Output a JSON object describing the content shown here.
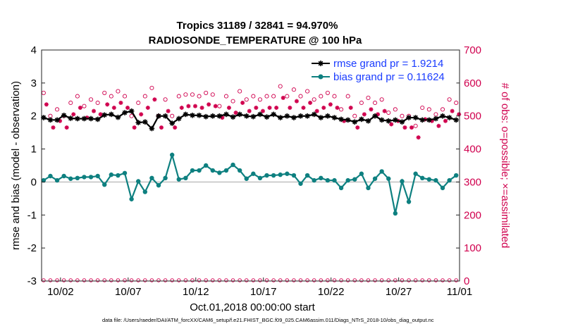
{
  "chart_data": {
    "type": "line",
    "title": "Tropics 31189 / 32841 = 94.970%",
    "subtitle": "RADIOSONDE_TEMPERATURE @ 100 hPa",
    "xlabel": "Oct.01,2018 00:00:00 start",
    "ylabel": "rmse and bias (model - observation)",
    "y2label": "# of obs: o=possible; ×=assimilated",
    "footer": "data file: /Users/raeder/DAI/ATM_forcXX/CAM6_setup/f.e21.FHIST_BGC.f09_025.CAM6assim.011/Diags_NTrS_2018-10/obs_diag_output.nc",
    "xlim": [
      0.6,
      31.5
    ],
    "ylim": [
      -3,
      4
    ],
    "y2lim": [
      0,
      700
    ],
    "xticks": [
      {
        "value": 2,
        "label": "10/02"
      },
      {
        "value": 7,
        "label": "10/07"
      },
      {
        "value": 12,
        "label": "10/12"
      },
      {
        "value": 17,
        "label": "10/17"
      },
      {
        "value": 22,
        "label": "10/22"
      },
      {
        "value": 27,
        "label": "10/27"
      },
      {
        "value": 32,
        "label": "11/01"
      }
    ],
    "yticks": [
      "-3",
      "-2",
      "-1",
      "0",
      "1",
      "2",
      "3",
      "4"
    ],
    "y2ticks": [
      "0",
      "100",
      "200",
      "300",
      "400",
      "500",
      "600",
      "700"
    ],
    "legend_position": "top-right",
    "grid": false,
    "zero_line": 0,
    "x": [
      0.75,
      1.25,
      1.75,
      2.25,
      2.75,
      3.25,
      3.75,
      4.25,
      4.75,
      5.25,
      5.75,
      6.25,
      6.75,
      7.25,
      7.75,
      8.25,
      8.75,
      9.25,
      9.75,
      10.25,
      10.75,
      11.25,
      11.75,
      12.25,
      12.75,
      13.25,
      13.75,
      14.25,
      14.75,
      15.25,
      15.75,
      16.25,
      16.75,
      17.25,
      17.75,
      18.25,
      18.75,
      19.25,
      19.75,
      20.25,
      20.75,
      21.25,
      21.75,
      22.25,
      22.75,
      23.25,
      23.75,
      24.25,
      24.75,
      25.25,
      25.75,
      26.25,
      26.75,
      27.25,
      27.75,
      28.25,
      28.75,
      29.25,
      29.75,
      30.25,
      30.75,
      31.25
    ],
    "series": [
      {
        "name": "rmse grand pr = 1.9214",
        "color": "#000000",
        "marker": "star",
        "values": [
          1.95,
          1.88,
          1.88,
          2.02,
          1.93,
          1.92,
          1.92,
          1.92,
          1.9,
          2.03,
          2.05,
          1.96,
          2.1,
          2.15,
          1.8,
          1.82,
          1.62,
          2.0,
          2.0,
          1.78,
          1.92,
          2.05,
          2.02,
          2.02,
          1.98,
          2.0,
          2.0,
          2.05,
          1.97,
          2.05,
          2.0,
          1.98,
          2.05,
          1.97,
          2.05,
          1.95,
          2.0,
          1.95,
          2.0,
          2.0,
          2.05,
          1.95,
          2.0,
          1.95,
          1.9,
          1.88,
          1.82,
          1.9,
          1.85,
          2.0,
          1.88,
          1.85,
          1.88,
          1.82,
          1.95,
          1.95,
          1.88,
          1.88,
          1.92,
          2.0,
          1.95,
          1.88
        ]
      },
      {
        "name": "bias grand pr = 0.11624",
        "color": "#0e8080",
        "marker": "circle",
        "values": [
          0.05,
          0.18,
          0.05,
          0.18,
          0.1,
          0.12,
          0.15,
          0.15,
          0.18,
          -0.08,
          0.22,
          0.2,
          0.27,
          -0.52,
          0.02,
          -0.3,
          0.12,
          -0.1,
          0.12,
          0.82,
          0.08,
          0.12,
          0.35,
          0.35,
          0.5,
          0.35,
          0.28,
          0.35,
          0.52,
          0.35,
          0.1,
          0.25,
          0.12,
          0.2,
          0.2,
          0.22,
          0.25,
          0.2,
          -0.05,
          0.2,
          0.05,
          0.12,
          0.05,
          0.05,
          -0.18,
          0.05,
          0.08,
          0.25,
          -0.18,
          0.1,
          0.32,
          0.1,
          -0.95,
          0.02,
          -0.6,
          0.25,
          0.12,
          0.08,
          0.05,
          -0.18,
          0.05,
          0.2
        ]
      }
    ],
    "obs_possible": [
      570,
      500,
      520,
      500,
      540,
      560,
      530,
      550,
      540,
      570,
      560,
      575,
      560,
      500,
      540,
      560,
      585,
      500,
      550,
      500,
      560,
      565,
      565,
      560,
      570,
      565,
      530,
      560,
      545,
      575,
      550,
      560,
      550,
      560,
      560,
      590,
      560,
      580,
      560,
      575,
      550,
      560,
      570,
      560,
      520,
      560,
      500,
      540,
      555,
      540,
      550,
      510,
      520,
      500,
      500,
      470,
      525,
      520,
      505,
      520,
      550,
      540
    ]
  }
}
